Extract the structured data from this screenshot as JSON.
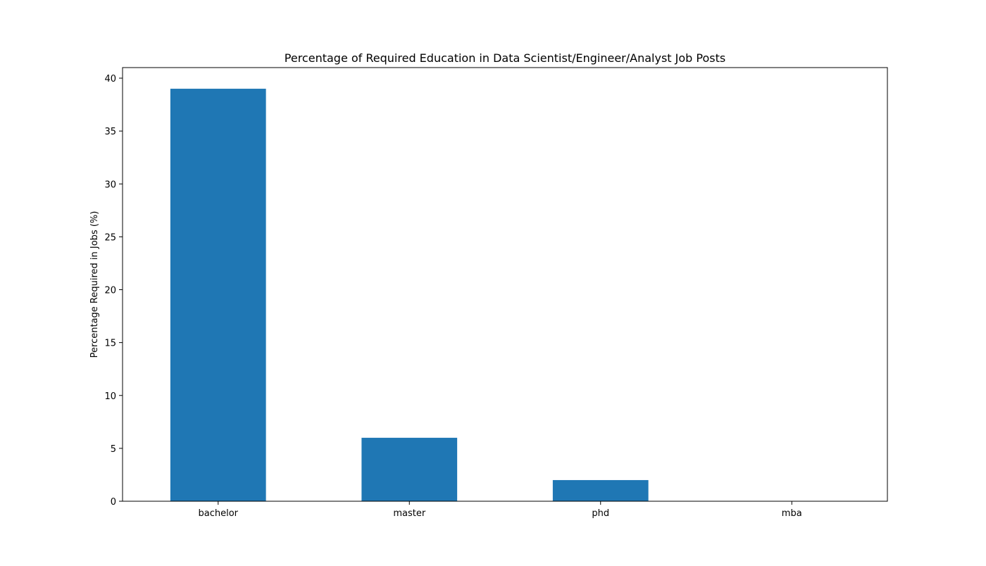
{
  "chart_data": {
    "type": "bar",
    "title": "Percentage of Required Education in Data Scientist/Engineer/Analyst Job Posts",
    "xlabel": "",
    "ylabel": "Percentage Required in Jobs (%)",
    "categories": [
      "bachelor",
      "master",
      "phd",
      "mba"
    ],
    "values": [
      39,
      6,
      2,
      0
    ],
    "ylim": [
      0,
      41
    ],
    "yticks": [
      0,
      5,
      10,
      15,
      20,
      25,
      30,
      35,
      40
    ],
    "bar_color": "#1f77b4",
    "grid": false,
    "legend": "none"
  }
}
